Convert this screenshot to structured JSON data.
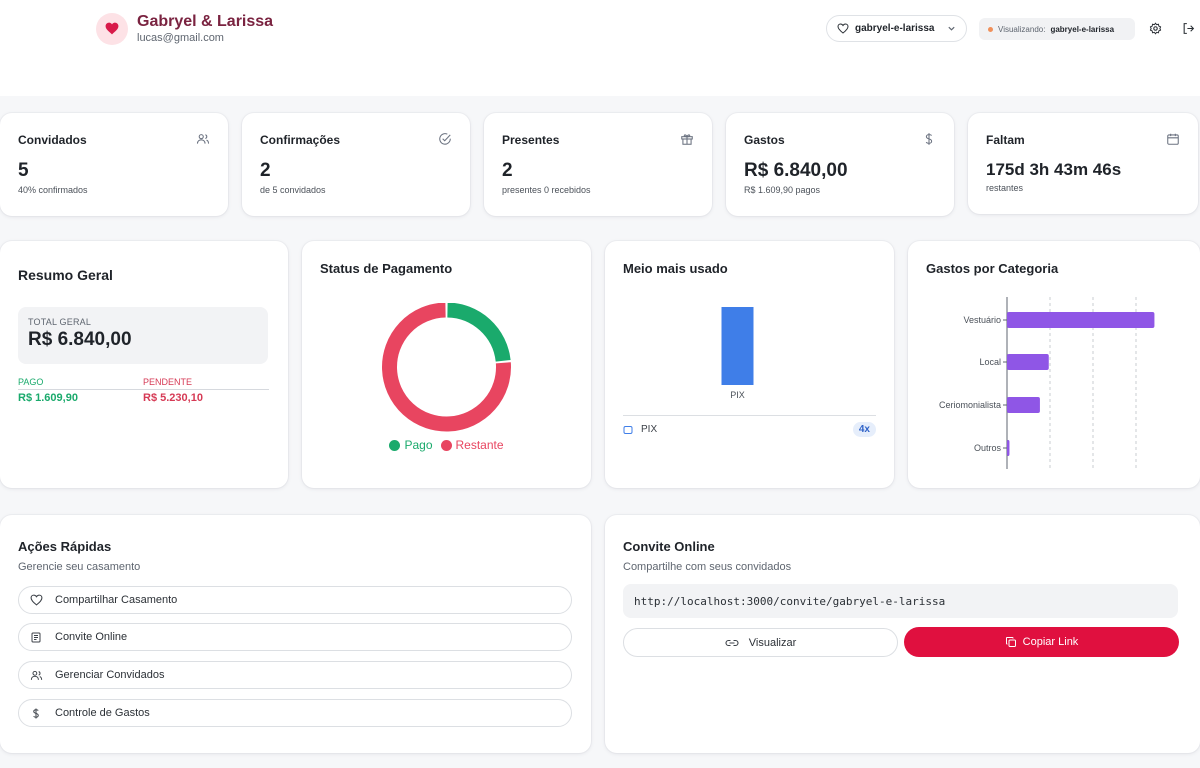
{
  "header": {
    "couple_name": "Gabryel & Larissa",
    "email": "lucas@gmail.com",
    "wedding_select": "gabryel-e-larissa",
    "viewing_label": "Visualizando:",
    "viewing_value": "gabryel-e-larissa"
  },
  "stats": [
    {
      "title": "Convidados",
      "value": "5",
      "sub": "40% confirmados",
      "icon": "users-icon"
    },
    {
      "title": "Confirmações",
      "value": "2",
      "sub": "de 5 convidados",
      "icon": "check-circle-icon"
    },
    {
      "title": "Presentes",
      "value": "2",
      "sub": "presentes 0 recebidos",
      "icon": "gift-icon"
    },
    {
      "title": "Gastos",
      "value": "R$ 6.840,00",
      "sub": "R$ 1.609,90 pagos",
      "icon": "dollar-icon"
    },
    {
      "title": "Faltam",
      "value": "175d 3h 43m 46s",
      "sub": "restantes",
      "icon": "calendar-icon"
    }
  ],
  "summary": {
    "title": "Resumo Geral",
    "total_label": "TOTAL GERAL",
    "total_value": "R$ 6.840,00",
    "paid_label": "PAGO",
    "paid_value": "R$ 1.609,90",
    "pending_label": "PENDENTE",
    "pending_value": "R$ 5.230,10"
  },
  "payment_status": {
    "title": "Status de Pagamento",
    "legend_paid": "Pago",
    "legend_rest": "Restante"
  },
  "payment_method": {
    "title": "Meio mais usado",
    "method": "PIX",
    "count": "4x"
  },
  "categories": {
    "title": "Gastos por Categoria"
  },
  "chart_data": [
    {
      "type": "pie",
      "title": "Status de Pagamento",
      "labels": [
        "Pago",
        "Restante"
      ],
      "values": [
        1609.9,
        5230.1
      ],
      "colors": [
        "#1aaa6c",
        "#e84560"
      ]
    },
    {
      "type": "bar",
      "title": "Meio mais usado",
      "categories": [
        "PIX"
      ],
      "values": [
        4
      ],
      "color": "#3f7ee8"
    },
    {
      "type": "bar",
      "orientation": "horizontal",
      "title": "Gastos por Categoria",
      "categories": [
        "Vestuário",
        "Local",
        "Ceriomonialista",
        "Outros"
      ],
      "values": [
        3000,
        850,
        670,
        50
      ],
      "color": "#8f56e6",
      "grid": true
    }
  ],
  "quick_actions": {
    "title": "Ações Rápidas",
    "subtitle": "Gerencie seu casamento",
    "items": [
      {
        "label": "Compartilhar Casamento",
        "icon": "heart-icon"
      },
      {
        "label": "Convite Online",
        "icon": "document-icon"
      },
      {
        "label": "Gerenciar Convidados",
        "icon": "users-icon"
      },
      {
        "label": "Controle de Gastos",
        "icon": "dollar-icon"
      }
    ]
  },
  "invite": {
    "title": "Convite Online",
    "subtitle": "Compartilhe com seus convidados",
    "url": "http://localhost:3000/convite/gabryel-e-larissa",
    "view_label": "Visualizar",
    "copy_label": "Copiar Link"
  },
  "colors": {
    "accent": "#e0103f",
    "paid": "#1aaa6c",
    "pending": "#e84560",
    "bar_blue": "#3f7ee8",
    "bar_purple": "#8f56e6",
    "brand_text": "#7a2340"
  }
}
